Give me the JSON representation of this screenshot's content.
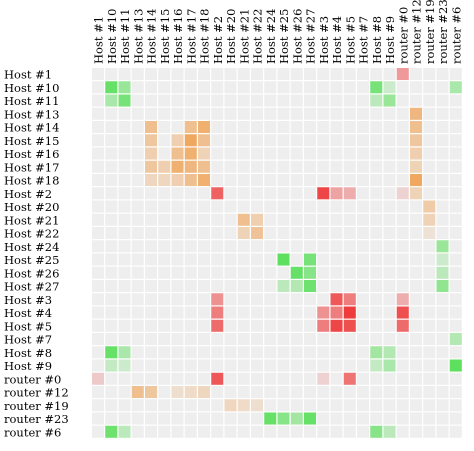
{
  "chart_data": {
    "type": "heatmap",
    "columns": [
      "Host #1",
      "Host #10",
      "Host #11",
      "Host #13",
      "Host #14",
      "Host #15",
      "Host #16",
      "Host #17",
      "Host #18",
      "Host #2",
      "Host #20",
      "Host #21",
      "Host #22",
      "Host #24",
      "Host #25",
      "Host #26",
      "Host #27",
      "Host #3",
      "Host #4",
      "Host #5",
      "Host #7",
      "Host #8",
      "Host #9",
      "router #0",
      "router #12",
      "router #19",
      "router #23",
      "router #6"
    ],
    "rows": [
      "Host #1",
      "Host #10",
      "Host #11",
      "Host #13",
      "Host #14",
      "Host #15",
      "Host #16",
      "Host #17",
      "Host #18",
      "Host #2",
      "Host #20",
      "Host #21",
      "Host #22",
      "Host #24",
      "Host #25",
      "Host #26",
      "Host #27",
      "Host #3",
      "Host #4",
      "Host #5",
      "Host #7",
      "Host #8",
      "Host #9",
      "router #0",
      "router #12",
      "router #19",
      "router #23",
      "router #6"
    ],
    "background_color": "#eeeeee",
    "colors": {
      "green": "#44dd44",
      "orange": "#f0a050",
      "red": "#ee3333"
    },
    "cells": [
      [
        0,
        23,
        "red",
        0.45
      ],
      [
        1,
        1,
        "green",
        0.8
      ],
      [
        1,
        2,
        "green",
        0.5
      ],
      [
        1,
        21,
        "green",
        0.7
      ],
      [
        1,
        22,
        "green",
        0.2
      ],
      [
        1,
        27,
        "green",
        0.4
      ],
      [
        2,
        1,
        "green",
        0.4
      ],
      [
        2,
        2,
        "green",
        0.7
      ],
      [
        2,
        21,
        "green",
        0.3
      ],
      [
        2,
        22,
        "green",
        0.5
      ],
      [
        3,
        24,
        "orange",
        0.7
      ],
      [
        4,
        4,
        "orange",
        0.6
      ],
      [
        4,
        7,
        "orange",
        0.6
      ],
      [
        4,
        8,
        "orange",
        0.8
      ],
      [
        4,
        24,
        "orange",
        0.6
      ],
      [
        5,
        4,
        "orange",
        0.5
      ],
      [
        5,
        6,
        "orange",
        0.4
      ],
      [
        5,
        7,
        "orange",
        0.9
      ],
      [
        5,
        8,
        "orange",
        0.6
      ],
      [
        5,
        24,
        "orange",
        0.5
      ],
      [
        6,
        4,
        "orange",
        0.4
      ],
      [
        6,
        6,
        "orange",
        0.6
      ],
      [
        6,
        7,
        "orange",
        0.8
      ],
      [
        6,
        8,
        "orange",
        0.35
      ],
      [
        6,
        24,
        "orange",
        0.4
      ],
      [
        7,
        4,
        "orange",
        0.5
      ],
      [
        7,
        5,
        "orange",
        0.4
      ],
      [
        7,
        6,
        "orange",
        0.8
      ],
      [
        7,
        7,
        "orange",
        0.7
      ],
      [
        7,
        8,
        "orange",
        0.6
      ],
      [
        7,
        24,
        "orange",
        0.35
      ],
      [
        8,
        4,
        "orange",
        0.3
      ],
      [
        8,
        5,
        "orange",
        0.3
      ],
      [
        8,
        6,
        "orange",
        0.4
      ],
      [
        8,
        7,
        "orange",
        0.6
      ],
      [
        8,
        8,
        "orange",
        0.8
      ],
      [
        8,
        24,
        "orange",
        0.9
      ],
      [
        9,
        9,
        "red",
        0.75
      ],
      [
        9,
        17,
        "red",
        0.9
      ],
      [
        9,
        18,
        "red",
        0.4
      ],
      [
        9,
        19,
        "red",
        0.35
      ],
      [
        9,
        23,
        "red",
        0.15
      ],
      [
        9,
        24,
        "orange",
        0.35
      ],
      [
        10,
        25,
        "orange",
        0.45
      ],
      [
        11,
        11,
        "orange",
        0.6
      ],
      [
        11,
        12,
        "orange",
        0.4
      ],
      [
        11,
        25,
        "orange",
        0.35
      ],
      [
        12,
        11,
        "orange",
        0.35
      ],
      [
        12,
        12,
        "orange",
        0.55
      ],
      [
        12,
        25,
        "orange",
        0.15
      ],
      [
        13,
        26,
        "green",
        0.5
      ],
      [
        14,
        14,
        "green",
        0.85
      ],
      [
        14,
        16,
        "green",
        0.7
      ],
      [
        14,
        26,
        "green",
        0.2
      ],
      [
        15,
        15,
        "green",
        0.8
      ],
      [
        15,
        16,
        "green",
        0.6
      ],
      [
        15,
        26,
        "green",
        0.3
      ],
      [
        16,
        14,
        "green",
        0.3
      ],
      [
        16,
        15,
        "green",
        0.35
      ],
      [
        16,
        16,
        "green",
        0.75
      ],
      [
        16,
        26,
        "green",
        0.55
      ],
      [
        17,
        9,
        "red",
        0.5
      ],
      [
        17,
        18,
        "red",
        0.8
      ],
      [
        17,
        19,
        "red",
        0.6
      ],
      [
        17,
        23,
        "red",
        0.35
      ],
      [
        18,
        9,
        "red",
        0.6
      ],
      [
        18,
        17,
        "red",
        0.5
      ],
      [
        18,
        18,
        "red",
        0.6
      ],
      [
        18,
        19,
        "red",
        0.95
      ],
      [
        18,
        23,
        "red",
        0.85
      ],
      [
        19,
        9,
        "red",
        0.7
      ],
      [
        19,
        17,
        "red",
        0.6
      ],
      [
        19,
        18,
        "red",
        0.9
      ],
      [
        19,
        19,
        "red",
        0.85
      ],
      [
        19,
        23,
        "red",
        0.7
      ],
      [
        20,
        27,
        "green",
        0.35
      ],
      [
        21,
        1,
        "green",
        0.8
      ],
      [
        21,
        2,
        "green",
        0.4
      ],
      [
        21,
        21,
        "green",
        0.45
      ],
      [
        21,
        22,
        "green",
        0.35
      ],
      [
        22,
        1,
        "green",
        0.25
      ],
      [
        22,
        2,
        "green",
        0.2
      ],
      [
        22,
        21,
        "green",
        0.25
      ],
      [
        22,
        22,
        "green",
        0.4
      ],
      [
        22,
        27,
        "green",
        0.85
      ],
      [
        23,
        0,
        "red",
        0.2
      ],
      [
        23,
        9,
        "red",
        0.8
      ],
      [
        23,
        17,
        "red",
        0.15
      ],
      [
        23,
        19,
        "red",
        0.65
      ],
      [
        24,
        3,
        "orange",
        0.6
      ],
      [
        24,
        4,
        "orange",
        0.5
      ],
      [
        24,
        6,
        "orange",
        0.2
      ],
      [
        24,
        7,
        "orange",
        0.25
      ],
      [
        24,
        8,
        "orange",
        0.3
      ],
      [
        25,
        10,
        "orange",
        0.3
      ],
      [
        25,
        11,
        "orange",
        0.25
      ],
      [
        25,
        12,
        "orange",
        0.2
      ],
      [
        26,
        13,
        "green",
        0.8
      ],
      [
        26,
        14,
        "green",
        0.6
      ],
      [
        26,
        15,
        "green",
        0.45
      ],
      [
        26,
        16,
        "green",
        0.8
      ],
      [
        27,
        1,
        "green",
        0.75
      ],
      [
        27,
        2,
        "green",
        0.3
      ],
      [
        27,
        21,
        "green",
        0.6
      ],
      [
        27,
        22,
        "green",
        0.3
      ]
    ]
  }
}
